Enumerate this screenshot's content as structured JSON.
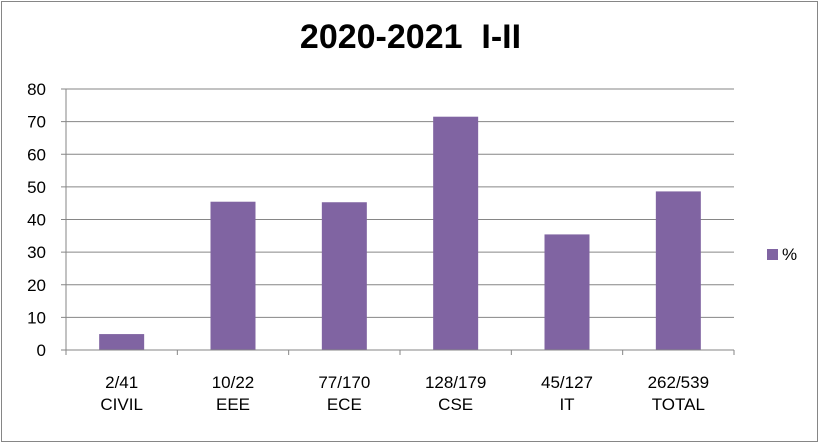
{
  "chart_data": {
    "type": "bar",
    "title": "2020-2021  I-II",
    "categories": [
      [
        "2/41",
        "CIVIL"
      ],
      [
        "10/22",
        "EEE"
      ],
      [
        "77/170",
        "ECE"
      ],
      [
        "128/179",
        "CSE"
      ],
      [
        "45/127",
        "IT"
      ],
      [
        "262/539",
        "TOTAL"
      ]
    ],
    "series": [
      {
        "name": "%",
        "values": [
          4.88,
          45.45,
          45.29,
          71.51,
          35.43,
          48.61
        ],
        "color": "#8064A2"
      }
    ],
    "ylim": [
      0,
      80
    ],
    "yticks": [
      0,
      10,
      20,
      30,
      40,
      50,
      60,
      70,
      80
    ],
    "grid": true,
    "legend_position": "right"
  }
}
